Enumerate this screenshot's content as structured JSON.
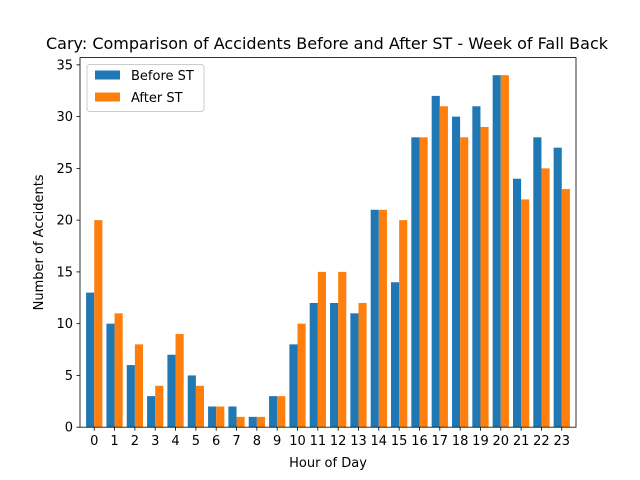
{
  "chart_data": {
    "type": "bar",
    "title": "Cary: Comparison of Accidents Before and After ST - Week of Fall Back",
    "xlabel": "Hour of Day",
    "ylabel": "Number of Accidents",
    "categories": [
      "0",
      "1",
      "2",
      "3",
      "4",
      "5",
      "6",
      "7",
      "8",
      "9",
      "10",
      "11",
      "12",
      "13",
      "14",
      "15",
      "16",
      "17",
      "18",
      "19",
      "20",
      "21",
      "22",
      "23"
    ],
    "series": [
      {
        "name": "Before ST",
        "color": "#1f77b4",
        "values": [
          13,
          10,
          6,
          3,
          7,
          5,
          2,
          2,
          1,
          3,
          8,
          12,
          12,
          11,
          21,
          14,
          28,
          32,
          30,
          31,
          34,
          24,
          28,
          27
        ]
      },
      {
        "name": "After ST",
        "color": "#ff7f0e",
        "values": [
          20,
          11,
          8,
          4,
          9,
          4,
          2,
          1,
          1,
          3,
          10,
          15,
          15,
          12,
          21,
          20,
          28,
          31,
          28,
          29,
          34,
          22,
          25,
          23
        ]
      }
    ],
    "ylim": [
      0,
      35.7
    ],
    "yticks": [
      0,
      5,
      10,
      15,
      20,
      25,
      30,
      35
    ],
    "grid": false,
    "legend_position": "top-left"
  }
}
